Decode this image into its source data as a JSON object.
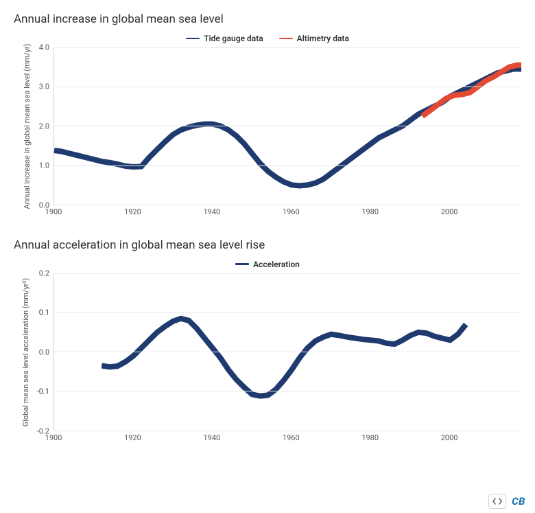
{
  "chart1": {
    "type": "line",
    "title": "Annual increase in global mean sea level",
    "ylabel": "Annual increase in global mean sea level (mm/yr)",
    "background_color": "#ffffff",
    "grid_color": "#e8eaec",
    "axis_color": "#cfd4d9",
    "title_fontsize": 17,
    "label_fontsize": 11,
    "line_width": 2,
    "xlim": [
      1900,
      2018
    ],
    "ylim": [
      0.0,
      4.0
    ],
    "xticks": [
      1900,
      1920,
      1940,
      1960,
      1980,
      2000
    ],
    "yticks": [
      0.0,
      1.0,
      2.0,
      3.0,
      4.0
    ],
    "legend": [
      {
        "label": "Tide gauge data",
        "color": "#1f3a6e"
      },
      {
        "label": "Altimetry data",
        "color": "#e34a33"
      }
    ],
    "series": [
      {
        "name": "Tide gauge data",
        "color": "#1f3a6e",
        "data": [
          [
            1900,
            1.38
          ],
          [
            1902,
            1.35
          ],
          [
            1904,
            1.3
          ],
          [
            1906,
            1.25
          ],
          [
            1908,
            1.2
          ],
          [
            1910,
            1.15
          ],
          [
            1912,
            1.1
          ],
          [
            1914,
            1.07
          ],
          [
            1916,
            1.03
          ],
          [
            1918,
            0.98
          ],
          [
            1920,
            0.96
          ],
          [
            1922,
            0.97
          ],
          [
            1924,
            1.2
          ],
          [
            1926,
            1.4
          ],
          [
            1928,
            1.6
          ],
          [
            1930,
            1.78
          ],
          [
            1932,
            1.9
          ],
          [
            1934,
            1.97
          ],
          [
            1936,
            2.02
          ],
          [
            1938,
            2.05
          ],
          [
            1940,
            2.05
          ],
          [
            1942,
            2.0
          ],
          [
            1944,
            1.9
          ],
          [
            1946,
            1.75
          ],
          [
            1948,
            1.55
          ],
          [
            1950,
            1.3
          ],
          [
            1952,
            1.05
          ],
          [
            1954,
            0.85
          ],
          [
            1956,
            0.7
          ],
          [
            1958,
            0.58
          ],
          [
            1960,
            0.5
          ],
          [
            1962,
            0.48
          ],
          [
            1964,
            0.5
          ],
          [
            1966,
            0.55
          ],
          [
            1968,
            0.65
          ],
          [
            1970,
            0.8
          ],
          [
            1972,
            0.95
          ],
          [
            1974,
            1.1
          ],
          [
            1976,
            1.25
          ],
          [
            1978,
            1.4
          ],
          [
            1980,
            1.55
          ],
          [
            1982,
            1.7
          ],
          [
            1984,
            1.8
          ],
          [
            1986,
            1.9
          ],
          [
            1988,
            2.0
          ],
          [
            1990,
            2.15
          ],
          [
            1992,
            2.3
          ],
          [
            1994,
            2.4
          ],
          [
            1996,
            2.5
          ],
          [
            1998,
            2.6
          ],
          [
            2000,
            2.75
          ],
          [
            2002,
            2.85
          ],
          [
            2004,
            2.95
          ],
          [
            2006,
            3.05
          ],
          [
            2008,
            3.15
          ],
          [
            2010,
            3.25
          ],
          [
            2012,
            3.35
          ],
          [
            2014,
            3.4
          ],
          [
            2016,
            3.45
          ],
          [
            2018,
            3.45
          ]
        ]
      },
      {
        "name": "Altimetry data",
        "color": "#e34a33",
        "data": [
          [
            1993,
            2.25
          ],
          [
            1995,
            2.4
          ],
          [
            1997,
            2.55
          ],
          [
            1999,
            2.7
          ],
          [
            2001,
            2.78
          ],
          [
            2003,
            2.8
          ],
          [
            2005,
            2.85
          ],
          [
            2007,
            3.0
          ],
          [
            2009,
            3.15
          ],
          [
            2011,
            3.25
          ],
          [
            2013,
            3.38
          ],
          [
            2015,
            3.5
          ],
          [
            2017,
            3.55
          ],
          [
            2018,
            3.55
          ]
        ]
      }
    ]
  },
  "chart2": {
    "type": "line",
    "title": "Annual acceleration in global mean sea level rise",
    "ylabel": "Global mean sea level acceleration (mm/yr²)",
    "background_color": "#ffffff",
    "grid_color": "#e8eaec",
    "axis_color": "#cfd4d9",
    "title_fontsize": 17,
    "label_fontsize": 11,
    "line_width": 2,
    "xlim": [
      1900,
      2018
    ],
    "ylim": [
      -0.2,
      0.2
    ],
    "xticks": [
      1900,
      1920,
      1940,
      1960,
      1980,
      2000
    ],
    "yticks": [
      -0.2,
      -0.1,
      -0.1,
      0.0,
      0.1,
      0.1,
      0.2
    ],
    "legend": [
      {
        "label": "Acceleration",
        "color": "#1f3a6e"
      }
    ],
    "series": [
      {
        "name": "Acceleration",
        "color": "#1f3a6e",
        "data": [
          [
            1912,
            -0.035
          ],
          [
            1914,
            -0.038
          ],
          [
            1916,
            -0.036
          ],
          [
            1918,
            -0.025
          ],
          [
            1920,
            -0.01
          ],
          [
            1922,
            0.01
          ],
          [
            1924,
            0.03
          ],
          [
            1926,
            0.05
          ],
          [
            1928,
            0.065
          ],
          [
            1930,
            0.078
          ],
          [
            1932,
            0.085
          ],
          [
            1934,
            0.08
          ],
          [
            1936,
            0.06
          ],
          [
            1938,
            0.035
          ],
          [
            1940,
            0.01
          ],
          [
            1942,
            -0.015
          ],
          [
            1944,
            -0.045
          ],
          [
            1946,
            -0.07
          ],
          [
            1948,
            -0.09
          ],
          [
            1950,
            -0.108
          ],
          [
            1952,
            -0.112
          ],
          [
            1954,
            -0.11
          ],
          [
            1956,
            -0.095
          ],
          [
            1958,
            -0.072
          ],
          [
            1960,
            -0.045
          ],
          [
            1962,
            -0.015
          ],
          [
            1964,
            0.01
          ],
          [
            1966,
            0.028
          ],
          [
            1968,
            0.038
          ],
          [
            1970,
            0.045
          ],
          [
            1972,
            0.042
          ],
          [
            1974,
            0.038
          ],
          [
            1976,
            0.035
          ],
          [
            1978,
            0.032
          ],
          [
            1980,
            0.03
          ],
          [
            1982,
            0.028
          ],
          [
            1984,
            0.022
          ],
          [
            1986,
            0.02
          ],
          [
            1988,
            0.03
          ],
          [
            1990,
            0.042
          ],
          [
            1992,
            0.05
          ],
          [
            1994,
            0.048
          ],
          [
            1996,
            0.04
          ],
          [
            1998,
            0.035
          ],
          [
            2000,
            0.03
          ],
          [
            2002,
            0.045
          ],
          [
            2004,
            0.07
          ]
        ]
      }
    ]
  },
  "footer": {
    "logo_text": "CB",
    "logo_color": "#1f77b4",
    "embed_icon": "code-icon"
  }
}
